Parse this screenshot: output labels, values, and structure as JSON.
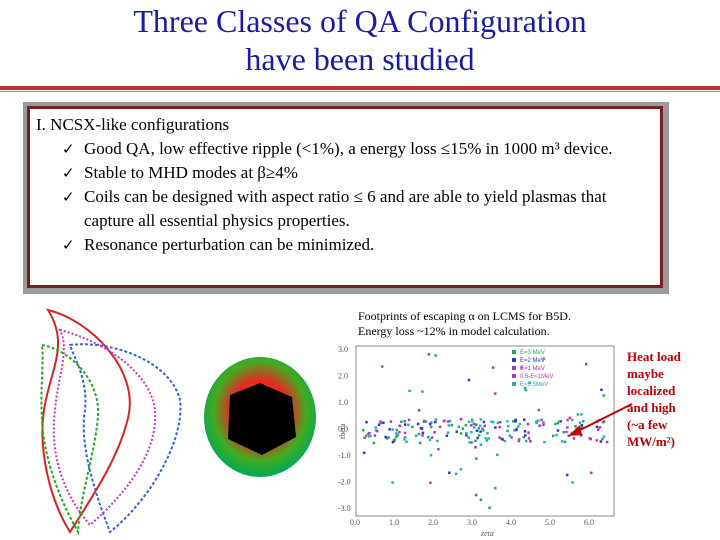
{
  "slide": {
    "title_line1": "Three Classes of QA Configuration",
    "title_line2": "have been studied",
    "box_heading": "I. NCSX-like configurations",
    "bullets": [
      "Good QA, low effective ripple (<1%), a energy loss ≤15% in 1000 m³ device.",
      "Stable to MHD modes at  β≥4%",
      "Coils can be designed with aspect ratio ≤ 6 and are able to yield plasmas that capture all essential physics properties.",
      "Resonance perturbation can be minimized."
    ],
    "caption_line1": "Footprints of escaping α on LCMS for B5D.",
    "caption_line2": "Energy loss ~12% in model calculation.",
    "annotation_lines": [
      "Heat load",
      "maybe",
      "localized",
      "and high",
      "(~a few",
      "MW/m²)"
    ],
    "check_glyph": "✓"
  },
  "plot": {
    "ylabel": "theta",
    "xlabel": "zeta",
    "x_ticks": [
      "0.0",
      "1.0",
      "2.0",
      "3.0",
      "4.0",
      "5.0",
      "6.0"
    ],
    "y_ticks": [
      "3.0",
      "2.0",
      "1.0",
      "0.0",
      "-1.0",
      "-2.0",
      "-3.0"
    ],
    "legend": [
      "E=3 MeV",
      "E=2 MeV",
      "E=1 MeV",
      "0.5-E<1MeV",
      "E<0.5MeV"
    ]
  },
  "colors": {
    "title": "#1a1aa8",
    "rule": "#c8292b",
    "annotation": "#c00000",
    "box_border": "#7a1f1f"
  }
}
